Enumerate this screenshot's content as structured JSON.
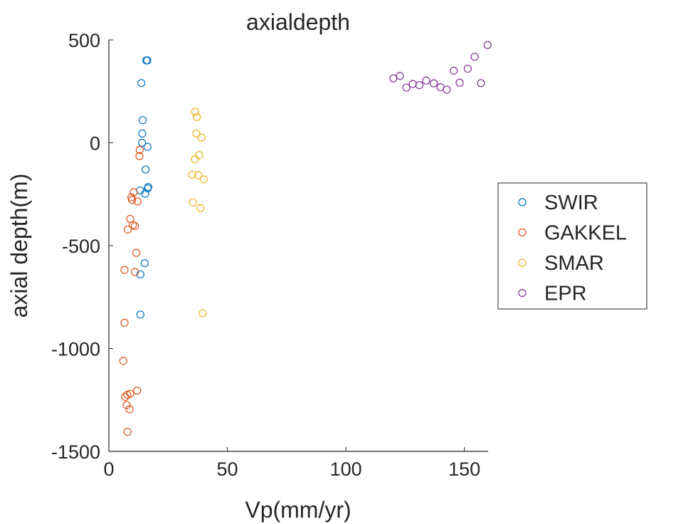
{
  "chart_data": {
    "type": "scatter",
    "title": "axialdepth",
    "xlabel": "Vp(mm/yr)",
    "ylabel": "axial depth(m)",
    "xlim": [
      0,
      160
    ],
    "ylim": [
      -1500,
      500
    ],
    "xticks": [
      0,
      50,
      100,
      150
    ],
    "yticks": [
      500,
      0,
      -500,
      -1000,
      -1500
    ],
    "xtick_labels": [
      "0",
      "50",
      "100",
      "150"
    ],
    "ytick_labels": [
      "500",
      "0",
      "-500",
      "-1000",
      "-1500"
    ],
    "grid": false,
    "legend_position": "right",
    "marker": "open-circle",
    "series": [
      {
        "name": "SWIR",
        "color": "#0072bd",
        "points": [
          [
            15.8,
            400
          ],
          [
            16.2,
            400
          ],
          [
            13.7,
            290
          ],
          [
            14.3,
            110
          ],
          [
            14.1,
            45
          ],
          [
            14.0,
            0
          ],
          [
            16.3,
            -20
          ],
          [
            15.5,
            -130
          ],
          [
            16.6,
            -215
          ],
          [
            16.4,
            -222
          ],
          [
            13.2,
            -232
          ],
          [
            15.3,
            -248
          ],
          [
            15.1,
            -585
          ],
          [
            13.3,
            -640
          ],
          [
            13.3,
            -835
          ]
        ]
      },
      {
        "name": "GAKKEL",
        "color": "#d95319",
        "points": [
          [
            13.0,
            -35
          ],
          [
            12.9,
            -65
          ],
          [
            10.5,
            -240
          ],
          [
            9.5,
            -265
          ],
          [
            9.8,
            -278
          ],
          [
            12.1,
            -285
          ],
          [
            9.0,
            -370
          ],
          [
            10.1,
            -400
          ],
          [
            11.0,
            -405
          ],
          [
            8.0,
            -422
          ],
          [
            11.6,
            -535
          ],
          [
            6.6,
            -618
          ],
          [
            11.0,
            -628
          ],
          [
            6.6,
            -875
          ],
          [
            6.1,
            -1060
          ],
          [
            11.9,
            -1205
          ],
          [
            9.0,
            -1220
          ],
          [
            7.8,
            -1225
          ],
          [
            6.9,
            -1235
          ],
          [
            7.5,
            -1275
          ],
          [
            8.7,
            -1295
          ],
          [
            7.9,
            -1405
          ]
        ]
      },
      {
        "name": "SMAR",
        "color": "#edb120",
        "points": [
          [
            36.4,
            150
          ],
          [
            37.1,
            125
          ],
          [
            36.9,
            45
          ],
          [
            39.1,
            25
          ],
          [
            38.1,
            -60
          ],
          [
            36.3,
            -80
          ],
          [
            35.1,
            -155
          ],
          [
            37.8,
            -158
          ],
          [
            40.0,
            -178
          ],
          [
            35.4,
            -290
          ],
          [
            38.6,
            -318
          ],
          [
            39.6,
            -828
          ]
        ]
      },
      {
        "name": "EPR",
        "color": "#7e2f8e",
        "points": [
          [
            120.0,
            313
          ],
          [
            122.8,
            325
          ],
          [
            125.5,
            268
          ],
          [
            128.2,
            286
          ],
          [
            131.0,
            280
          ],
          [
            133.9,
            302
          ],
          [
            137.1,
            289
          ],
          [
            139.9,
            270
          ],
          [
            142.6,
            258
          ],
          [
            145.5,
            350
          ],
          [
            148.0,
            292
          ],
          [
            151.4,
            360
          ],
          [
            154.3,
            418
          ],
          [
            157.0,
            290
          ],
          [
            159.8,
            475
          ]
        ]
      }
    ]
  }
}
